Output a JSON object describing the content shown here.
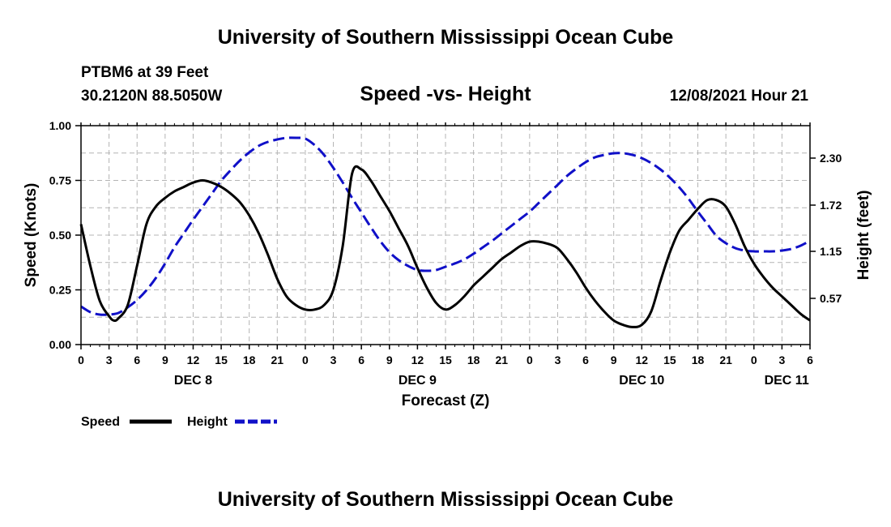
{
  "header": {
    "title": "University of Southern Mississippi Ocean Cube",
    "station": "PTBM6 at 39 Feet",
    "location": "30.2120N  88.5050W",
    "date": "12/08/2021 Hour 21",
    "footer_title": "University of Southern Mississippi Ocean Cube"
  },
  "chart_data": {
    "type": "line",
    "title": "Speed -vs- Height",
    "xlabel": "Forecast (Z)",
    "ylabel_left": "Speed (Knots)",
    "ylabel_right": "Height (feet)",
    "x_unit": "hours since DEC 8 00Z",
    "xlim": [
      0,
      78
    ],
    "ylim_left": [
      0,
      1.0
    ],
    "ylim_right": [
      0.0,
      2.7
    ],
    "left_ticks": [
      0.0,
      0.25,
      0.5,
      0.75,
      1.0
    ],
    "left_tick_labels": [
      "0.00",
      "0.25",
      "0.50",
      "0.75",
      "1.00"
    ],
    "right_ticks": [
      0.57,
      1.15,
      1.72,
      2.3
    ],
    "right_tick_labels": [
      "0.57",
      "1.15",
      "1.72",
      "2.30"
    ],
    "x_ticks": [
      0,
      3,
      6,
      9,
      12,
      15,
      18,
      21,
      24,
      27,
      30,
      33,
      36,
      39,
      42,
      45,
      48,
      51,
      54,
      57,
      60,
      63,
      66,
      69,
      72,
      75,
      78
    ],
    "x_tick_labels": [
      "0",
      "3",
      "6",
      "9",
      "12",
      "15",
      "18",
      "21",
      "0",
      "3",
      "6",
      "9",
      "12",
      "15",
      "18",
      "21",
      "0",
      "3",
      "6",
      "9",
      "12",
      "15",
      "18",
      "21",
      "0",
      "3",
      "6"
    ],
    "date_labels": [
      {
        "label": "DEC 8",
        "hour": 12
      },
      {
        "label": "DEC 9",
        "hour": 36
      },
      {
        "label": "DEC 10",
        "hour": 60
      },
      {
        "label": "DEC 11",
        "hour": 75.5
      }
    ],
    "grid": true,
    "legend": [
      {
        "name": "Speed",
        "color": "#000000",
        "dash": "solid"
      },
      {
        "name": "Height",
        "color": "#1010c8",
        "dash": "dashed"
      }
    ],
    "series": [
      {
        "name": "Speed",
        "axis": "left",
        "color": "#000000",
        "x": [
          0,
          1,
          2,
          3,
          3.5,
          4,
          5,
          6,
          7,
          8,
          9,
          10,
          11,
          12,
          13,
          14,
          15,
          16,
          17,
          18,
          19,
          20,
          21,
          22,
          23,
          24,
          25,
          26,
          27,
          28,
          29,
          30,
          31,
          32,
          33,
          34,
          35,
          36,
          37,
          38,
          39,
          40,
          41,
          42,
          43,
          44,
          45,
          46,
          47,
          48,
          49,
          50,
          51,
          52,
          53,
          54,
          55,
          56,
          57,
          58,
          59,
          60,
          61,
          62,
          63,
          64,
          65,
          66,
          67,
          68,
          69,
          70,
          71,
          72,
          73,
          74,
          75,
          76,
          77,
          78
        ],
        "values": [
          0.55,
          0.36,
          0.2,
          0.13,
          0.11,
          0.12,
          0.18,
          0.36,
          0.55,
          0.63,
          0.67,
          0.7,
          0.72,
          0.74,
          0.75,
          0.74,
          0.72,
          0.69,
          0.65,
          0.59,
          0.51,
          0.41,
          0.3,
          0.22,
          0.18,
          0.16,
          0.16,
          0.18,
          0.25,
          0.45,
          0.78,
          0.8,
          0.75,
          0.68,
          0.61,
          0.53,
          0.45,
          0.35,
          0.26,
          0.19,
          0.16,
          0.18,
          0.22,
          0.27,
          0.31,
          0.35,
          0.39,
          0.42,
          0.45,
          0.47,
          0.47,
          0.46,
          0.44,
          0.39,
          0.33,
          0.26,
          0.2,
          0.15,
          0.11,
          0.09,
          0.08,
          0.09,
          0.15,
          0.29,
          0.42,
          0.52,
          0.57,
          0.62,
          0.66,
          0.66,
          0.63,
          0.55,
          0.45,
          0.37,
          0.31,
          0.26,
          0.22,
          0.18,
          0.14,
          0.11
        ]
      },
      {
        "name": "Height",
        "axis": "right",
        "color": "#1010c8",
        "x": [
          0,
          1,
          2,
          3,
          4,
          5,
          6,
          7,
          8,
          9,
          10,
          11,
          12,
          13,
          14,
          15,
          16,
          17,
          18,
          19,
          20,
          21,
          22,
          23,
          24,
          25,
          26,
          27,
          28,
          29,
          30,
          31,
          32,
          33,
          34,
          35,
          36,
          37,
          38,
          39,
          40,
          41,
          42,
          43,
          44,
          45,
          46,
          47,
          48,
          49,
          50,
          51,
          52,
          53,
          54,
          55,
          56,
          57,
          58,
          59,
          60,
          61,
          62,
          63,
          64,
          65,
          66,
          67,
          68,
          69,
          70,
          71,
          72,
          73,
          74,
          75,
          76,
          77,
          78
        ],
        "values": [
          0.47,
          0.4,
          0.37,
          0.37,
          0.39,
          0.46,
          0.55,
          0.67,
          0.82,
          1.0,
          1.2,
          1.37,
          1.54,
          1.7,
          1.86,
          2.02,
          2.15,
          2.27,
          2.37,
          2.45,
          2.5,
          2.53,
          2.55,
          2.55,
          2.54,
          2.46,
          2.34,
          2.18,
          2.0,
          1.81,
          1.63,
          1.45,
          1.28,
          1.14,
          1.04,
          0.97,
          0.92,
          0.91,
          0.92,
          0.96,
          1.0,
          1.05,
          1.12,
          1.2,
          1.28,
          1.37,
          1.46,
          1.55,
          1.64,
          1.75,
          1.86,
          1.97,
          2.08,
          2.17,
          2.25,
          2.31,
          2.34,
          2.36,
          2.36,
          2.34,
          2.3,
          2.24,
          2.16,
          2.06,
          1.94,
          1.8,
          1.64,
          1.49,
          1.34,
          1.25,
          1.19,
          1.16,
          1.15,
          1.15,
          1.15,
          1.16,
          1.18,
          1.22,
          1.28
        ]
      }
    ]
  }
}
